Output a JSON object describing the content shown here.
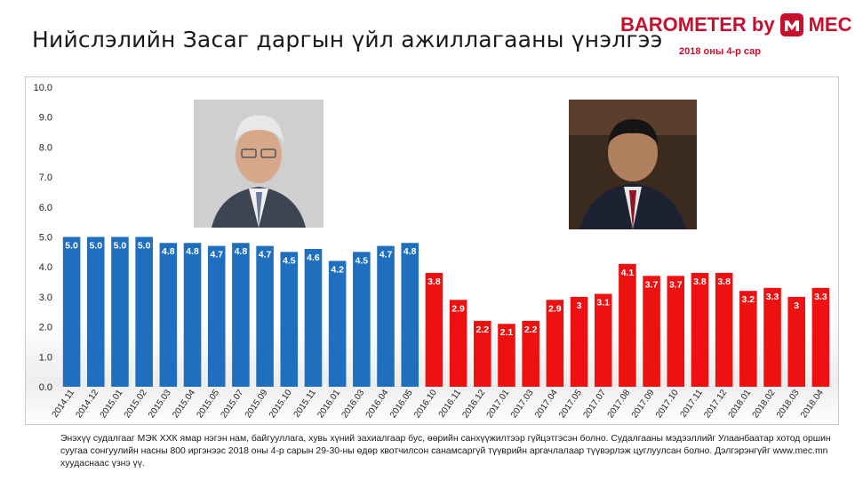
{
  "page": {
    "title": "Нийслэлийн Засаг даргын үйл ажиллагааны үнэлгээ",
    "brand": {
      "left": "BAROMETER by",
      "right": "MEC",
      "subtitle": "2018 оны 4-р сар"
    },
    "footnote": "Энэхүү судалгааг МЭК ХХК ямар нэгэн нам, байгууллага, хувь хүний захиалгаар бус, өөрийн санхүүжилтээр гүйцэтгэсэн болно. Судалгааны мэдээллийг Улаанбаатар хотод оршин суугаа сонгуулийн насны 800 иргэнээс 2018 оны 4-р сарын 29-30-ны өдөр квотчилсон санамсаргүй түүврийн аргачлалаар түүвэрлэж цуглуулсан болно. Дэлгэрэнгүйг www.mec.mn хуудаснаас үзнэ үү."
  },
  "chart_data": {
    "type": "bar",
    "title": "Нийслэлийн Засаг даргын үйл ажиллагааны үнэлгээ",
    "xlabel": "",
    "ylabel": "",
    "ylim": [
      0,
      10
    ],
    "yticks": [
      "0.0",
      "1.0",
      "2.0",
      "3.0",
      "4.0",
      "5.0",
      "6.0",
      "7.0",
      "8.0",
      "9.0",
      "10.0"
    ],
    "grid": false,
    "legend": "none",
    "categories": [
      "2014.11",
      "2014.12",
      "2015.01",
      "2015.02",
      "2015.03",
      "2015.04",
      "2015.05",
      "2015.07",
      "2015.09",
      "2015.10",
      "2015.11",
      "2016.01",
      "2016.03",
      "2016.04",
      "2016.05",
      "2016.10",
      "2016.11",
      "2016.12",
      "2017.01",
      "2017.03",
      "2017.04",
      "2017.05",
      "2017.07",
      "2017.08",
      "2017.09",
      "2017.10",
      "2017.11",
      "2017.12",
      "2018.01",
      "2018.02",
      "2018.03",
      "2018.04"
    ],
    "values": [
      5.0,
      5.0,
      5.0,
      5.0,
      4.8,
      4.8,
      4.7,
      4.8,
      4.7,
      4.5,
      4.6,
      4.2,
      4.5,
      4.7,
      4.8,
      3.8,
      2.9,
      2.2,
      2.1,
      2.2,
      2.9,
      3,
      3.1,
      4.1,
      3.7,
      3.7,
      3.8,
      3.8,
      3.2,
      3.3,
      3,
      3.3
    ],
    "labels": [
      "5.0",
      "5.0",
      "5.0",
      "5.0",
      "4.8",
      "4.8",
      "4.7",
      "4.8",
      "4.7",
      "4.5",
      "4.6",
      "4.2",
      "4.5",
      "4.7",
      "4.8",
      "3.8",
      "2.9",
      "2.2",
      "2.1",
      "2.2",
      "2.9",
      "3",
      "3.1",
      "4.1",
      "3.7",
      "3.7",
      "3.8",
      "3.8",
      "3.2",
      "3.3",
      "3",
      "3.3"
    ],
    "bar_colors": [
      "#1f6fbe",
      "#1f6fbe",
      "#1f6fbe",
      "#1f6fbe",
      "#1f6fbe",
      "#1f6fbe",
      "#1f6fbe",
      "#1f6fbe",
      "#1f6fbe",
      "#1f6fbe",
      "#1f6fbe",
      "#1f6fbe",
      "#1f6fbe",
      "#1f6fbe",
      "#1f6fbe",
      "#ee1111",
      "#ee1111",
      "#ee1111",
      "#ee1111",
      "#ee1111",
      "#ee1111",
      "#ee1111",
      "#ee1111",
      "#ee1111",
      "#ee1111",
      "#ee1111",
      "#ee1111",
      "#ee1111",
      "#ee1111",
      "#ee1111",
      "#ee1111",
      "#ee1111"
    ]
  },
  "colors": {
    "brand": "#c8102e",
    "series_first": "#1f6fbe",
    "series_second": "#ee1111"
  }
}
